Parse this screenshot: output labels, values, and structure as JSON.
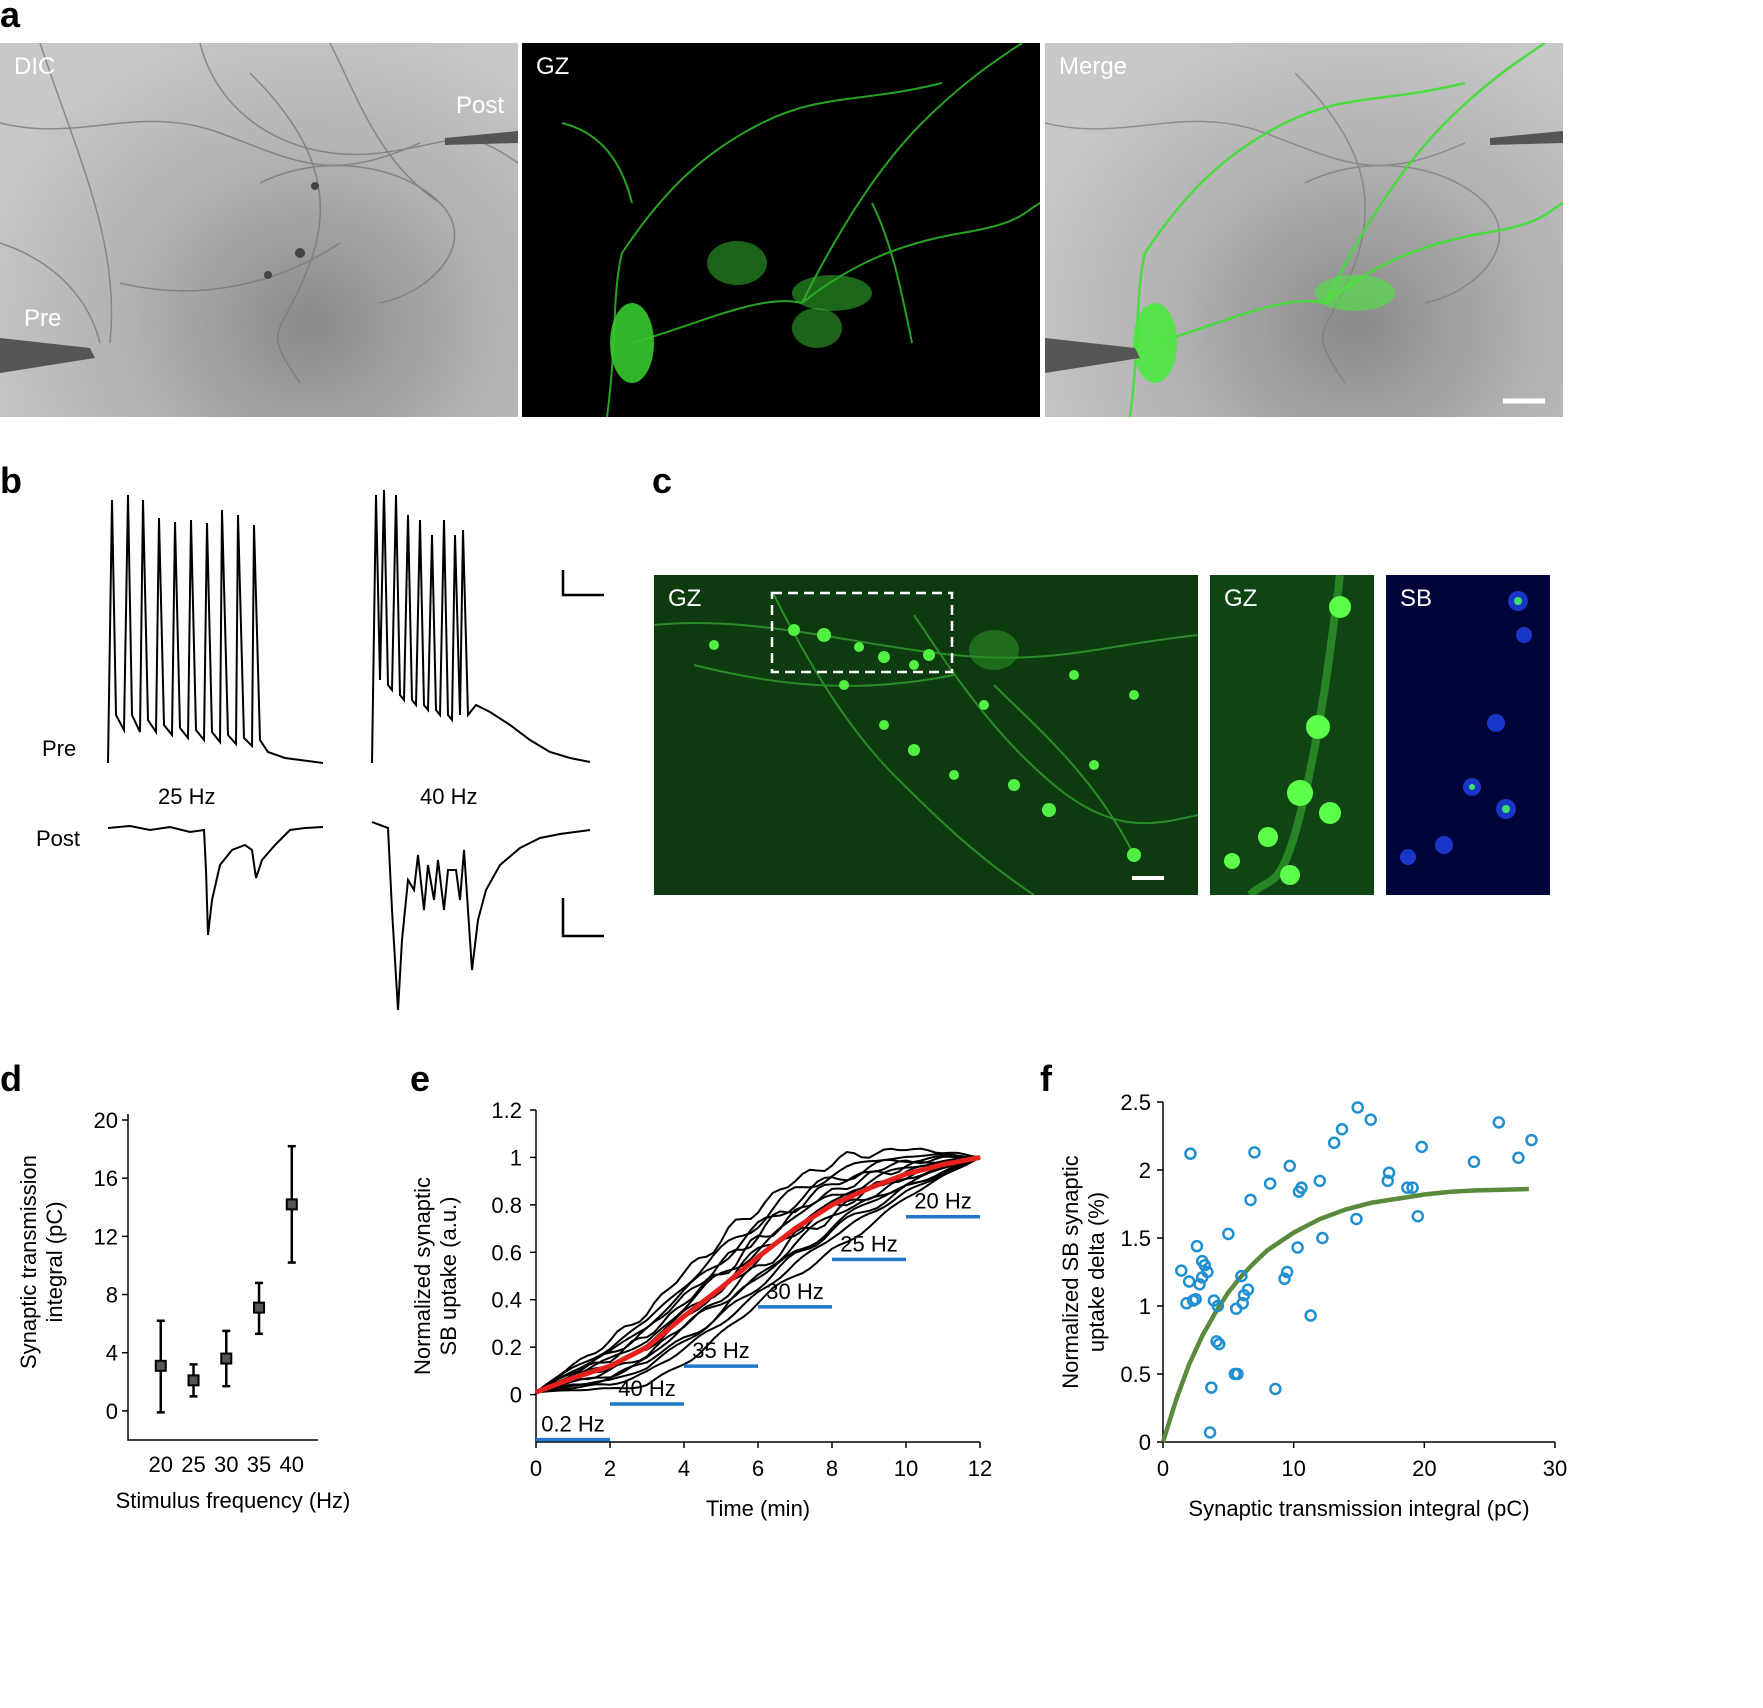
{
  "panel_a": {
    "letter": "a",
    "panels": [
      "DIC",
      "GZ",
      "Merge"
    ],
    "pre_label": "Pre",
    "post_label": "Post"
  },
  "panel_b": {
    "letter": "b",
    "pre_label": "Pre",
    "post_label": "Post",
    "freq_left": "25 Hz",
    "freq_right": "40 Hz"
  },
  "panel_c": {
    "letter": "c",
    "main_label": "GZ",
    "inset_gz_label": "GZ",
    "inset_sb_label": "SB"
  },
  "panel_d": {
    "letter": "d"
  },
  "panel_e": {
    "letter": "e"
  },
  "panel_f": {
    "letter": "f"
  },
  "chart_data": [
    {
      "id": "d",
      "type": "scatter",
      "xlabel": "Stimulus frequency (Hz)",
      "ylabel": "Synaptic transmission integral (pC)",
      "ylabel_lines": [
        "Synaptic transmission",
        "integral (pC)"
      ],
      "x": [
        20,
        25,
        30,
        35,
        40
      ],
      "y": [
        3.1,
        2.1,
        3.6,
        7.1,
        14.2
      ],
      "err_low": [
        -0.1,
        1.0,
        1.7,
        5.3,
        10.2
      ],
      "err_high": [
        6.2,
        3.2,
        5.5,
        8.8,
        18.2
      ],
      "yticks": [
        0,
        4,
        8,
        12,
        16,
        20
      ],
      "ylim": [
        -2,
        20
      ],
      "xlim": [
        15,
        44
      ],
      "marker": "square",
      "color": "#000000"
    },
    {
      "id": "e",
      "type": "line",
      "xlabel": "Time (min)",
      "ylabel": "Normalized synaptic SB uptake (a.u.)",
      "ylabel_lines": [
        "Normalized synaptic",
        "SB uptake (a.u.)"
      ],
      "xticks": [
        0,
        2,
        4,
        6,
        8,
        10,
        12
      ],
      "yticks": [
        0,
        0.2,
        0.4,
        0.6,
        0.8,
        1,
        1.2
      ],
      "xlim": [
        0,
        12
      ],
      "ylim": [
        -0.2,
        1.2
      ],
      "mean_curve": {
        "x": [
          0,
          1,
          2,
          3,
          4,
          5,
          6,
          7,
          8,
          9,
          10,
          11,
          12
        ],
        "y": [
          0.01,
          0.07,
          0.12,
          0.2,
          0.33,
          0.45,
          0.58,
          0.7,
          0.8,
          0.87,
          0.93,
          0.97,
          1.0
        ],
        "color": "#e8201e"
      },
      "individual_traces_color": "#000000",
      "individual_traces_count": 14,
      "epochs": [
        {
          "label": "0.2 Hz",
          "start": 0,
          "end": 2,
          "level": -0.19
        },
        {
          "label": "40 Hz",
          "start": 2,
          "end": 4,
          "level": -0.04
        },
        {
          "label": "35 Hz",
          "start": 4,
          "end": 6,
          "level": 0.12
        },
        {
          "label": "30 Hz",
          "start": 6,
          "end": 8,
          "level": 0.37
        },
        {
          "label": "25 Hz",
          "start": 8,
          "end": 10,
          "level": 0.57
        },
        {
          "label": "20 Hz",
          "start": 10,
          "end": 12,
          "level": 0.75
        }
      ],
      "epoch_color": "#1f78c8"
    },
    {
      "id": "f",
      "type": "scatter",
      "xlabel": "Synaptic transmission integral (pC)",
      "ylabel": "Normalized SB synaptic uptake delta (%)",
      "ylabel_lines": [
        "Normalized SB synaptic",
        "uptake delta (%)"
      ],
      "xticks": [
        0,
        10,
        20,
        30
      ],
      "yticks": [
        0,
        0.5,
        1,
        1.5,
        2,
        2.5
      ],
      "xlim": [
        0,
        30
      ],
      "ylim": [
        0,
        2.5
      ],
      "points": [
        [
          1.4,
          1.26
        ],
        [
          1.8,
          1.02
        ],
        [
          2.0,
          1.18
        ],
        [
          2.1,
          2.12
        ],
        [
          2.3,
          1.04
        ],
        [
          2.5,
          1.05
        ],
        [
          2.6,
          1.44
        ],
        [
          2.8,
          1.16
        ],
        [
          3.0,
          1.21
        ],
        [
          3.0,
          1.33
        ],
        [
          3.2,
          1.3
        ],
        [
          3.4,
          1.25
        ],
        [
          3.6,
          0.07
        ],
        [
          3.7,
          0.4
        ],
        [
          3.9,
          1.04
        ],
        [
          4.1,
          0.74
        ],
        [
          4.2,
          1.0
        ],
        [
          4.3,
          0.72
        ],
        [
          5.0,
          1.53
        ],
        [
          5.5,
          0.5
        ],
        [
          5.6,
          0.98
        ],
        [
          5.7,
          0.5
        ],
        [
          6.0,
          1.22
        ],
        [
          6.1,
          1.02
        ],
        [
          6.2,
          1.08
        ],
        [
          6.5,
          1.12
        ],
        [
          6.7,
          1.78
        ],
        [
          7.0,
          2.13
        ],
        [
          8.2,
          1.9
        ],
        [
          8.6,
          0.39
        ],
        [
          9.3,
          1.2
        ],
        [
          9.5,
          1.25
        ],
        [
          9.7,
          2.03
        ],
        [
          10.3,
          1.43
        ],
        [
          10.4,
          1.84
        ],
        [
          10.6,
          1.87
        ],
        [
          11.3,
          0.93
        ],
        [
          12.0,
          1.92
        ],
        [
          12.2,
          1.5
        ],
        [
          13.1,
          2.2
        ],
        [
          13.7,
          2.3
        ],
        [
          14.8,
          1.64
        ],
        [
          14.9,
          2.46
        ],
        [
          15.9,
          2.37
        ],
        [
          17.2,
          1.92
        ],
        [
          17.3,
          1.98
        ],
        [
          18.7,
          1.87
        ],
        [
          19.1,
          1.87
        ],
        [
          19.5,
          1.66
        ],
        [
          19.8,
          2.17
        ],
        [
          23.8,
          2.06
        ],
        [
          25.7,
          2.35
        ],
        [
          27.2,
          2.09
        ],
        [
          28.2,
          2.22
        ]
      ],
      "fit": {
        "x": [
          0,
          1,
          2,
          3,
          4,
          5,
          6,
          7,
          8,
          10,
          12,
          14,
          16,
          18,
          20,
          22,
          24,
          26,
          28
        ],
        "y": [
          0.0,
          0.31,
          0.57,
          0.78,
          0.95,
          1.1,
          1.22,
          1.32,
          1.41,
          1.54,
          1.64,
          1.71,
          1.76,
          1.79,
          1.82,
          1.84,
          1.85,
          1.855,
          1.86
        ],
        "color": "#5a8a3c"
      },
      "point_color": "#1f8fd0"
    }
  ]
}
